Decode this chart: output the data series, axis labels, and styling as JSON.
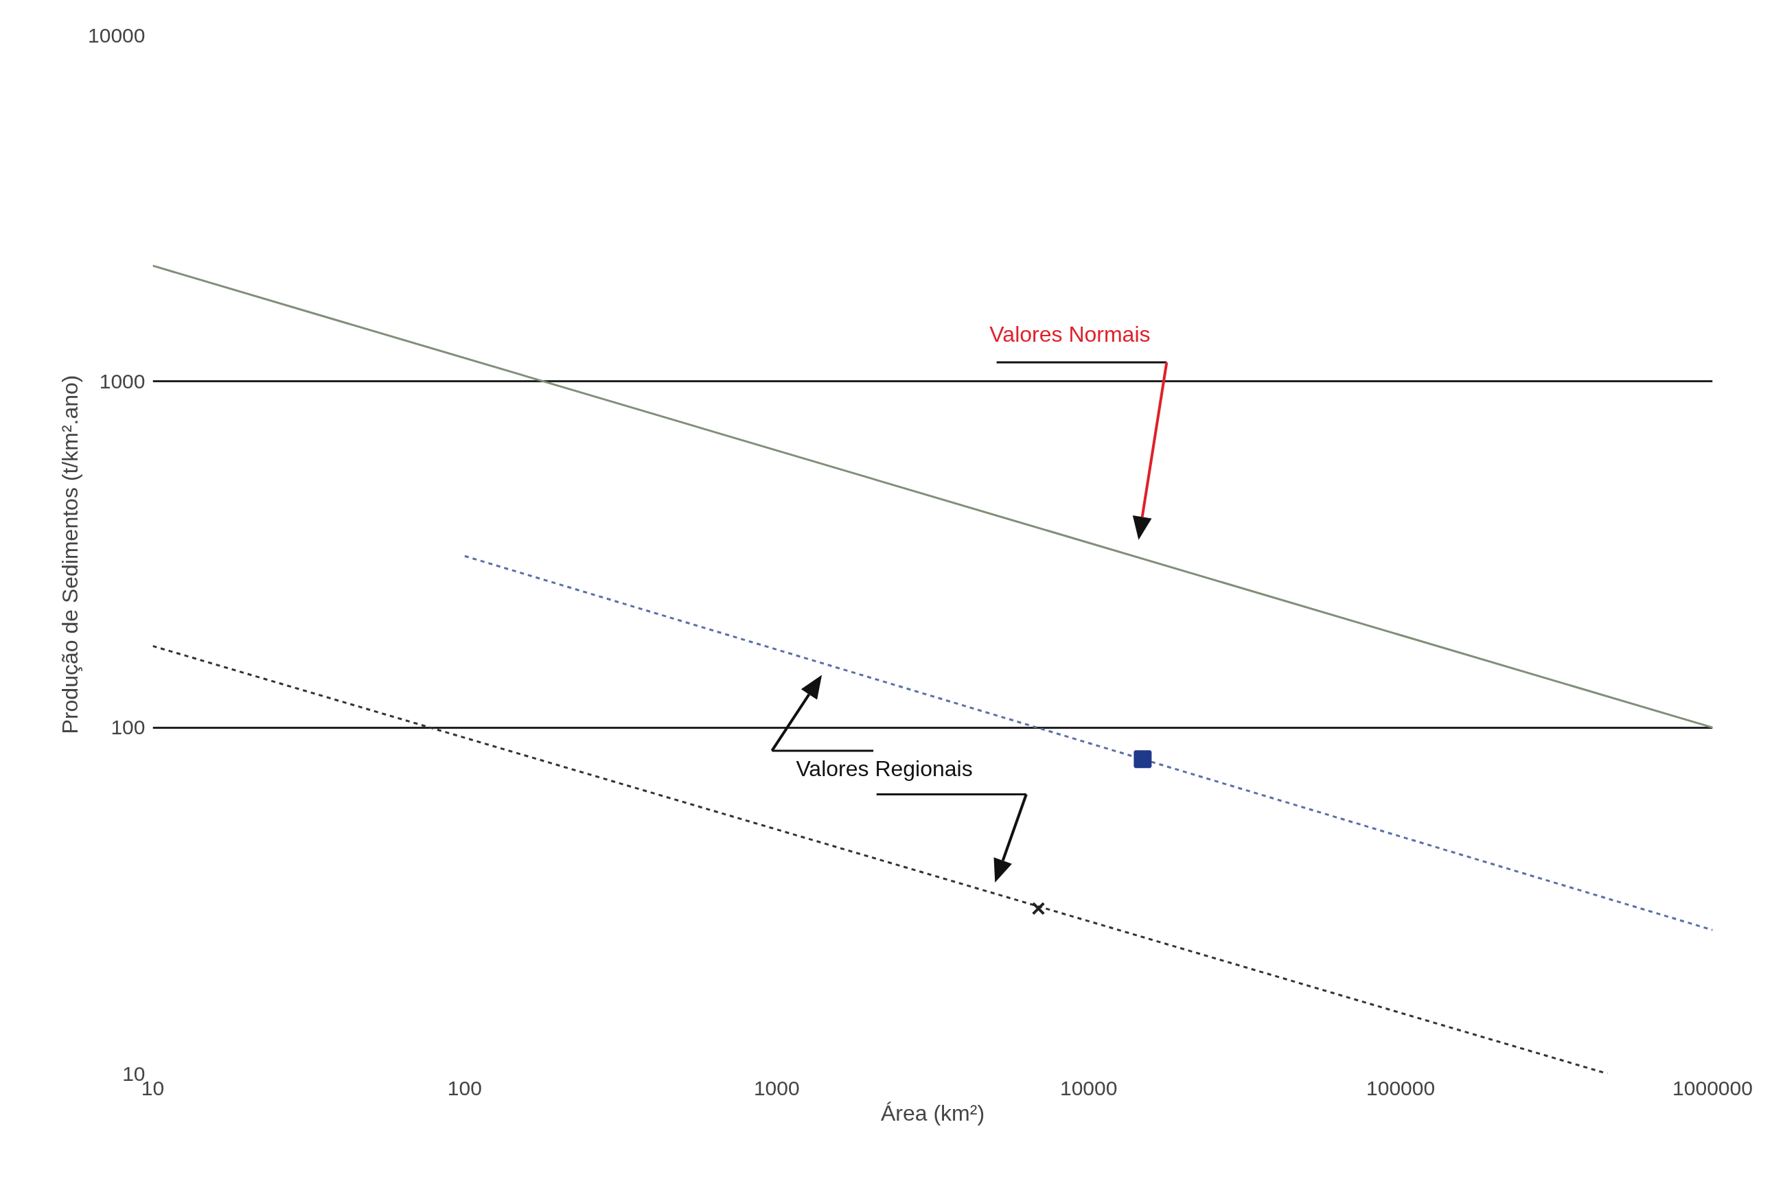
{
  "chart_data": {
    "type": "line",
    "xlabel": "Área (km²)",
    "ylabel": "Produção de Sedimentos (t/km².ano)",
    "log": "xy",
    "xlim": [
      10,
      1000000
    ],
    "ylim": [
      10,
      10000
    ],
    "xticks": [
      10,
      100,
      1000,
      10000,
      100000,
      1000000
    ],
    "yticks": [
      10,
      100,
      1000,
      10000
    ],
    "grid": "y",
    "annotations": [
      "Valores Normais",
      "Valores Regionais"
    ],
    "series": [
      {
        "x": [
          10,
          1000000
        ],
        "values": [
          2160,
          100
        ],
        "color": "#7f8f78",
        "line_style": "solid"
      },
      {
        "x": [
          100,
          1000000
        ],
        "values": [
          313,
          26
        ],
        "color": "#5a6fa8",
        "line_style": "dotted"
      },
      {
        "x": [
          10,
          460000
        ],
        "values": [
          172,
          10
        ],
        "color": "#333333",
        "line_style": "dotted"
      },
      {
        "type": "scatter",
        "x": [
          14900
        ],
        "values": [
          81
        ],
        "color": "#1f3a8a",
        "marker": "square"
      },
      {
        "type": "scatter",
        "x": [
          6900
        ],
        "values": [
          30
        ],
        "color": "#222222",
        "marker": "cross"
      }
    ]
  }
}
